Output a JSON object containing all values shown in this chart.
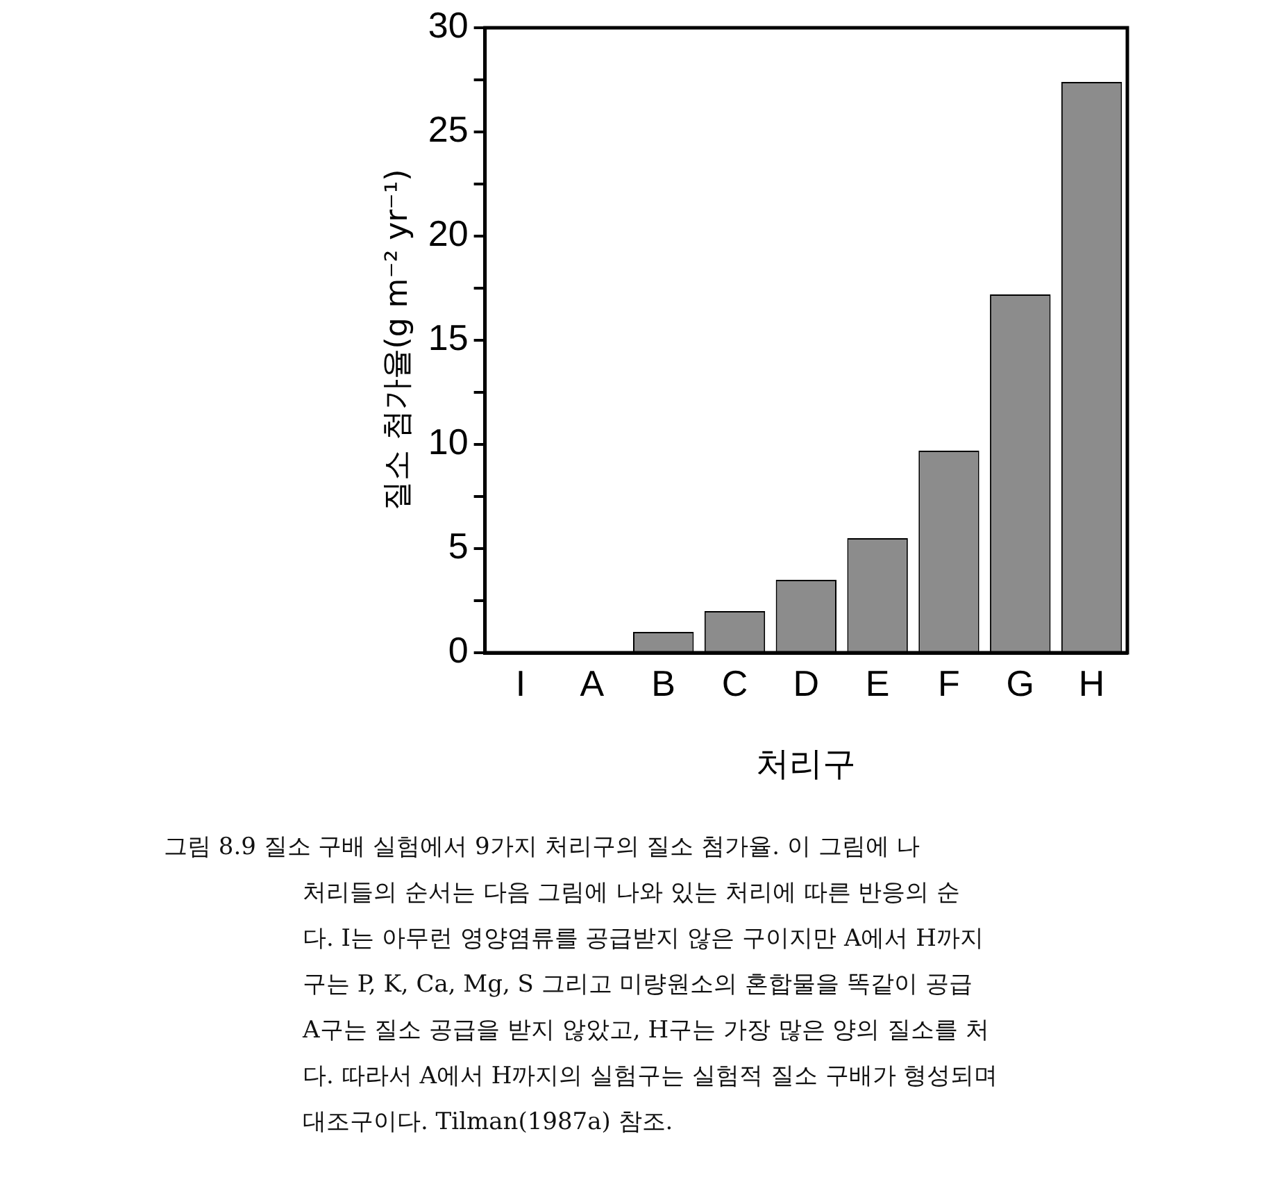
{
  "chart_data": {
    "type": "bar",
    "xlabel": "처리구",
    "ylabel": "질소 첨가율(g m⁻² yr⁻¹)",
    "categories": [
      "I",
      "A",
      "B",
      "C",
      "D",
      "E",
      "F",
      "G",
      "H"
    ],
    "values": [
      0,
      0,
      1.0,
      2.0,
      3.5,
      5.5,
      9.7,
      17.2,
      27.4
    ],
    "color": "#8c8c8c",
    "ylim": [
      0,
      30
    ],
    "yticks": [
      0,
      {
        "value": 2.5,
        "label": null
      },
      5,
      {
        "value": 7.5,
        "label": null
      },
      10,
      {
        "value": 12.5,
        "label": null
      },
      15,
      {
        "value": 17.5,
        "label": null
      },
      20,
      {
        "value": 22.5,
        "label": null
      },
      25,
      {
        "value": 27.5,
        "label": null
      },
      30
    ],
    "grid": false,
    "legend": false,
    "annotations": [
      "그림 8.9  질소 구배 실험에서 9가지 처리구의 질소 첨가율. 이 그림에 나",
      "처리들의 순서는 다음 그림에 나와 있는 처리에 따른 반응의 순",
      "다. I는 아무런 영양염류를 공급받지 않은 구이지만 A에서 H까지",
      "구는 P, K, Ca, Mg, S 그리고 미량원소의 혼합물을 똑같이 공급",
      "A구는 질소 공급을 받지 않았고, H구는 가장 많은 양의 질소를 처",
      "다. 따라서 A에서 H까지의 실험구는 실험적 질소 구배가 형성되며",
      "대조구이다. Tilman(1987a) 참조."
    ]
  }
}
